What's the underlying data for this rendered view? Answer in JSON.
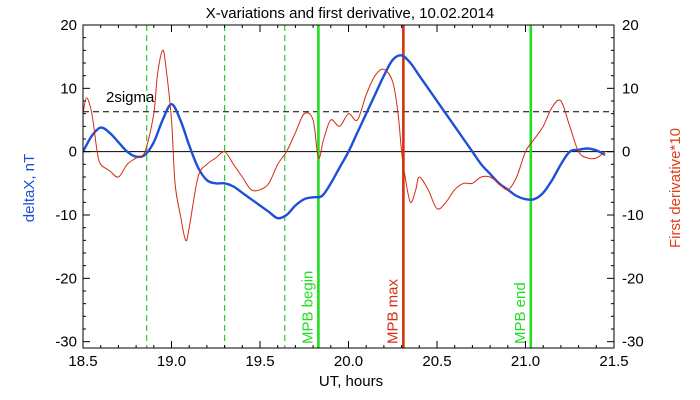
{
  "chart_data": {
    "type": "line",
    "title": "X-variations and first derivative, 10.02.2014",
    "xlabel": "UT, hours",
    "ylabel_left": "deltaX, nT",
    "ylabel_right": "First derivative*10",
    "xlim": [
      18.5,
      21.5
    ],
    "ylim_left": [
      -31,
      20
    ],
    "ylim_right": [
      -31,
      20
    ],
    "x_ticks": [
      18.5,
      19.0,
      19.5,
      20.0,
      20.5,
      21.0,
      21.5
    ],
    "x_tick_labels": [
      "18.5",
      "19.0",
      "19.5",
      "20.0",
      "20.5",
      "21.0",
      "21.5"
    ],
    "y_ticks": [
      20,
      10,
      0,
      -10,
      -20,
      -30
    ],
    "y_tick_labels": [
      "20",
      "10",
      "0",
      "-10",
      "-20",
      "-30"
    ],
    "sigma_label": "2sigma",
    "sigma_level": 6.3,
    "zero_level": 0,
    "colors": {
      "deltaX": "#1e4fd8",
      "derivative": "#d62a10",
      "mpb_edges": "#22dd22",
      "mpb_max": "#d63010",
      "dashed_green": "#2ec82e",
      "left_label": "#1e4fd8",
      "right_label": "#e0401c"
    },
    "series": [
      {
        "name": "deltaX",
        "axis": "left",
        "x": [
          18.5,
          18.55,
          18.6,
          18.65,
          18.7,
          18.75,
          18.8,
          18.85,
          18.9,
          18.95,
          19.0,
          19.05,
          19.1,
          19.15,
          19.2,
          19.25,
          19.3,
          19.35,
          19.4,
          19.45,
          19.5,
          19.55,
          19.6,
          19.65,
          19.7,
          19.75,
          19.8,
          19.85,
          19.9,
          19.95,
          20.0,
          20.05,
          20.1,
          20.15,
          20.2,
          20.25,
          20.3,
          20.35,
          20.4,
          20.45,
          20.5,
          20.55,
          20.6,
          20.65,
          20.7,
          20.75,
          20.8,
          20.85,
          20.9,
          20.95,
          21.0,
          21.05,
          21.1,
          21.15,
          21.2,
          21.25,
          21.3,
          21.35,
          21.4,
          21.45
        ],
        "values": [
          0,
          2.5,
          3.8,
          3,
          1.5,
          0,
          -0.8,
          -0.5,
          1.5,
          5,
          7.5,
          5,
          1,
          -2.5,
          -4.5,
          -5,
          -5,
          -5.5,
          -6.5,
          -7.5,
          -8.5,
          -9.5,
          -10.5,
          -10,
          -8.5,
          -7.5,
          -7.2,
          -7,
          -5,
          -2.5,
          0,
          3,
          6,
          9,
          12,
          14.5,
          15.2,
          14,
          12,
          10,
          8,
          6,
          4,
          2,
          0,
          -2,
          -3.5,
          -5,
          -6,
          -7,
          -7.5,
          -7.5,
          -6.5,
          -4.5,
          -2,
          0,
          0.3,
          0.5,
          0.2,
          -0.5
        ]
      },
      {
        "name": "derivative",
        "axis": "right",
        "x": [
          18.5,
          18.52,
          18.55,
          18.58,
          18.6,
          18.65,
          18.7,
          18.75,
          18.8,
          18.85,
          18.9,
          18.92,
          18.95,
          18.97,
          19.0,
          19.02,
          19.05,
          19.08,
          19.1,
          19.15,
          19.2,
          19.25,
          19.3,
          19.35,
          19.4,
          19.45,
          19.5,
          19.55,
          19.6,
          19.65,
          19.7,
          19.75,
          19.8,
          19.83,
          19.86,
          19.9,
          19.95,
          20.0,
          20.05,
          20.1,
          20.15,
          20.2,
          20.25,
          20.28,
          20.3,
          20.32,
          20.35,
          20.38,
          20.4,
          20.45,
          20.5,
          20.55,
          20.6,
          20.65,
          20.7,
          20.75,
          20.8,
          20.85,
          20.9,
          20.95,
          21.0,
          21.05,
          21.1,
          21.15,
          21.2,
          21.25,
          21.3,
          21.35,
          21.4,
          21.45
        ],
        "values": [
          6,
          8.5,
          6,
          0,
          -2,
          -3,
          -4,
          -2,
          -1,
          0,
          6,
          12,
          16,
          13,
          5,
          -5,
          -10,
          -14,
          -12,
          -4,
          -2,
          -1,
          0,
          -2,
          -4,
          -6,
          -6,
          -5,
          -2,
          0,
          3,
          6,
          5,
          -1,
          2,
          5,
          4,
          6,
          5,
          9,
          12,
          13,
          11,
          6,
          0,
          -4,
          -8,
          -6,
          -4,
          -6,
          -9,
          -8,
          -6,
          -5,
          -5,
          -4,
          -4,
          -5,
          -6,
          -4,
          0,
          2,
          4,
          7,
          8,
          4,
          0,
          -1,
          -1,
          0
        ]
      }
    ],
    "vlines": [
      {
        "x": 18.86,
        "style": "dashed",
        "color_key": "dashed_green"
      },
      {
        "x": 19.3,
        "style": "dashed",
        "color_key": "dashed_green"
      },
      {
        "x": 19.64,
        "style": "dashed",
        "color_key": "dashed_green"
      },
      {
        "x": 19.83,
        "style": "solid",
        "color_key": "mpb_edges",
        "label": "MPB begin"
      },
      {
        "x": 20.31,
        "style": "solid",
        "color_key": "mpb_max",
        "label": "MPB max"
      },
      {
        "x": 21.03,
        "style": "solid",
        "color_key": "mpb_edges",
        "label": "MPB end"
      }
    ]
  }
}
